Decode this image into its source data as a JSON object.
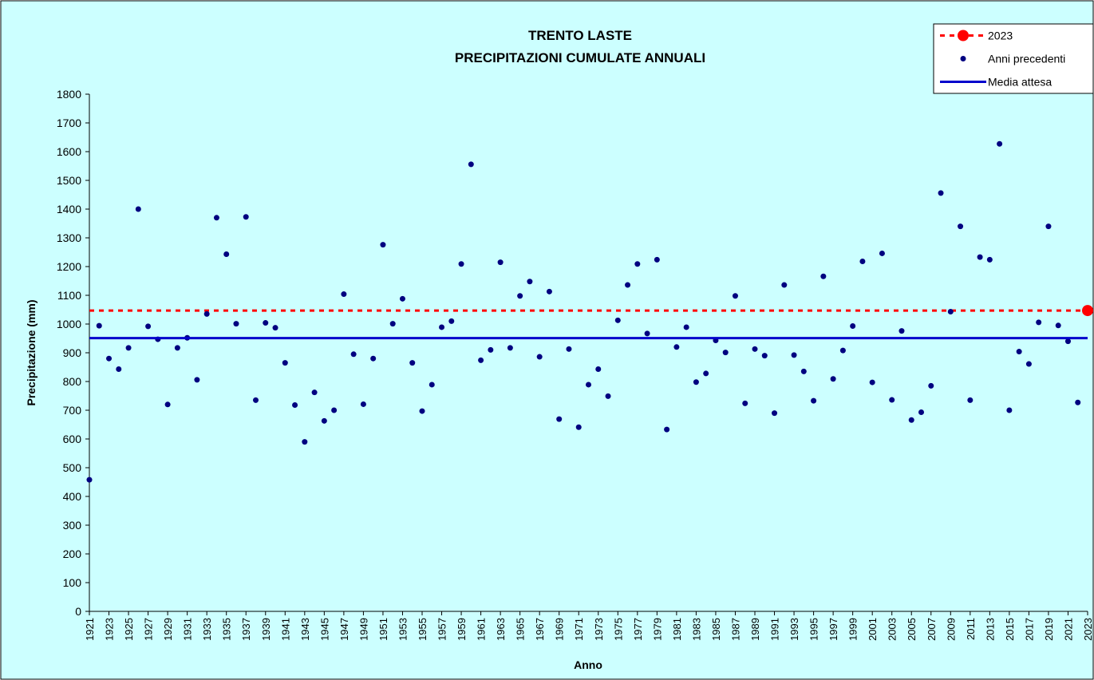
{
  "chart_data": {
    "type": "scatter",
    "title": "TRENTO LASTE",
    "subtitle": "PRECIPITAZIONI CUMULATE ANNUALI",
    "x_label": "Anno",
    "y_label": "Precipitazione (mm)",
    "xlim": [
      1921,
      2023
    ],
    "ylim": [
      0,
      1800
    ],
    "yticks": [
      0,
      100,
      200,
      300,
      400,
      500,
      600,
      700,
      800,
      900,
      1000,
      1100,
      1200,
      1300,
      1400,
      1500,
      1600,
      1700,
      1800
    ],
    "xticks": [
      1921,
      1923,
      1925,
      1927,
      1929,
      1931,
      1933,
      1935,
      1937,
      1939,
      1941,
      1943,
      1945,
      1947,
      1949,
      1951,
      1953,
      1955,
      1957,
      1959,
      1961,
      1963,
      1965,
      1967,
      1969,
      1971,
      1973,
      1975,
      1977,
      1979,
      1981,
      1983,
      1985,
      1987,
      1989,
      1991,
      1993,
      1995,
      1997,
      1999,
      2001,
      2003,
      2005,
      2007,
      2009,
      2011,
      2013,
      2015,
      2017,
      2019,
      2021,
      2023
    ],
    "grid": false,
    "legend": "top-right",
    "series": [
      {
        "name": "2023",
        "color": "#ff0000",
        "x": [
          2023
        ],
        "values": [
          1047
        ]
      },
      {
        "name": "Anni precedenti",
        "color": "#000080",
        "x": [
          1921,
          1922,
          1923,
          1924,
          1925,
          1926,
          1927,
          1928,
          1929,
          1930,
          1931,
          1932,
          1933,
          1934,
          1935,
          1936,
          1937,
          1938,
          1939,
          1940,
          1941,
          1942,
          1943,
          1944,
          1945,
          1946,
          1947,
          1948,
          1949,
          1950,
          1951,
          1952,
          1953,
          1954,
          1955,
          1956,
          1957,
          1958,
          1959,
          1960,
          1961,
          1962,
          1963,
          1964,
          1965,
          1966,
          1967,
          1968,
          1969,
          1970,
          1971,
          1972,
          1973,
          1974,
          1975,
          1976,
          1977,
          1978,
          1979,
          1980,
          1981,
          1982,
          1983,
          1984,
          1985,
          1986,
          1987,
          1988,
          1989,
          1990,
          1991,
          1992,
          1993,
          1994,
          1995,
          1996,
          1997,
          1998,
          1999,
          2000,
          2001,
          2002,
          2003,
          2004,
          2005,
          2006,
          2007,
          2008,
          2009,
          2010,
          2011,
          2012,
          2013,
          2014,
          2015,
          2016,
          2017,
          2018,
          2019,
          2020,
          2021,
          2022
        ],
        "values": [
          458,
          994,
          880,
          843,
          917,
          1400,
          992,
          947,
          720,
          917,
          952,
          806,
          1035,
          1370,
          1243,
          1001,
          1373,
          735,
          1004,
          987,
          865,
          718,
          590,
          762,
          663,
          700,
          1104,
          895,
          721,
          880,
          1276,
          1001,
          1088,
          865,
          697,
          789,
          989,
          1010,
          1209,
          1556,
          874,
          910,
          1215,
          917,
          1098,
          1148,
          886,
          1113,
          669,
          913,
          641,
          789,
          843,
          749,
          1013,
          1136,
          1209,
          967,
          1224,
          633,
          920,
          989,
          798,
          828,
          943,
          901,
          1098,
          724,
          913,
          890,
          690,
          1136,
          892,
          835,
          733,
          1166,
          809,
          908,
          993,
          1218,
          797,
          1246,
          736,
          976,
          666,
          693,
          785,
          1456,
          1043,
          1340,
          735,
          1233,
          1224,
          1627,
          700,
          904,
          861,
          1006,
          1340,
          995,
          940,
          727
        ]
      },
      {
        "name": "Media attesa",
        "color": "#0000cc",
        "value": 951
      }
    ]
  }
}
